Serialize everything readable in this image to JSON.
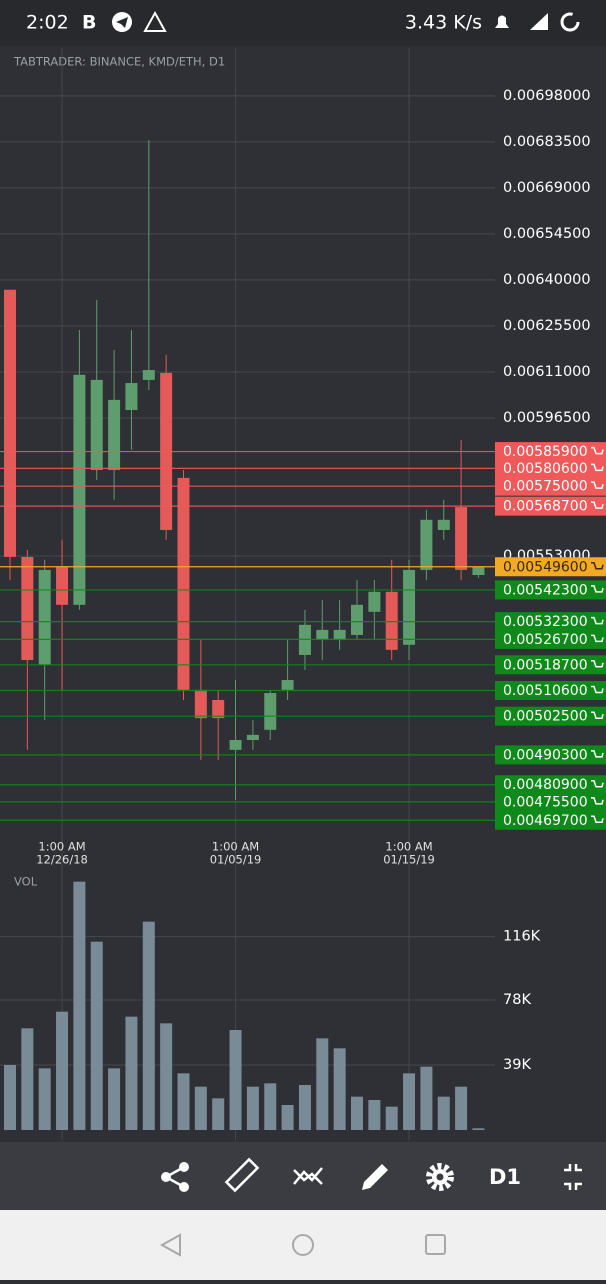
{
  "status_bar": {
    "time": "2:02",
    "app_badge": "B",
    "speed": "3.43 K/s"
  },
  "chart_title": "TABTRADER: BINANCE, KMD/ETH, D1",
  "chart_data": [
    {
      "type": "candlestick",
      "x": [
        "12/23/18",
        "12/24/18",
        "12/25/18",
        "12/26/18",
        "12/27/18",
        "12/28/18",
        "12/29/18",
        "12/30/18",
        "12/31/18",
        "01/01/19",
        "01/02/19",
        "01/03/19",
        "01/04/19",
        "01/05/19",
        "01/06/19",
        "01/07/19",
        "01/08/19",
        "01/09/19",
        "01/10/19",
        "01/11/19",
        "01/12/19",
        "01/13/19",
        "01/14/19",
        "01/15/19",
        "01/16/19",
        "01/17/19",
        "01/18/19",
        "01/19/19"
      ],
      "open": [
        0.006369,
        0.005527,
        0.005187,
        0.005495,
        0.005376,
        0.005801,
        0.005801,
        0.00599,
        0.006085,
        0.006107,
        0.005776,
        0.005108,
        0.005076,
        0.004919,
        0.00495,
        0.004982,
        0.005108,
        0.005218,
        0.005265,
        0.005265,
        0.005281,
        0.005354,
        0.005417,
        0.00525,
        0.005486,
        0.005612,
        0.005684,
        0.00547
      ],
      "high": [
        0.006369,
        0.005549,
        0.005518,
        0.005581,
        0.006242,
        0.006337,
        0.006179,
        0.006242,
        0.006841,
        0.006164,
        0.005801,
        0.005265,
        0.005108,
        0.005139,
        0.005013,
        0.005108,
        0.005265,
        0.00536,
        0.005391,
        0.005391,
        0.005454,
        0.005454,
        0.005518,
        0.005518,
        0.005675,
        0.005707,
        0.005896,
        0.005495
      ],
      "low": [
        0.005454,
        0.004919,
        0.005013,
        0.005108,
        0.00536,
        0.00577,
        0.005707,
        0.005864,
        0.006053,
        0.005581,
        0.005076,
        0.004887,
        0.004887,
        0.004761,
        0.004919,
        0.00495,
        0.005076,
        0.005171,
        0.005202,
        0.005234,
        0.005265,
        0.005265,
        0.005202,
        0.005202,
        0.005454,
        0.005581,
        0.005454,
        0.005461
      ],
      "close": [
        0.005527,
        0.005202,
        0.005486,
        0.005376,
        0.006101,
        0.006085,
        0.006022,
        0.006075,
        0.006116,
        0.005612,
        0.005108,
        0.005019,
        0.005019,
        0.00495,
        0.004966,
        0.005098,
        0.005139,
        0.005313,
        0.005297,
        0.005297,
        0.005376,
        0.005417,
        0.005234,
        0.005486,
        0.005644,
        0.005644,
        0.005486,
        0.005495
      ],
      "up_color": "#5e9d6d",
      "down_color": "#e45a58",
      "ylim": [
        0.00466,
        0.007131
      ],
      "yticks": [
        {
          "value": 0.00698,
          "label": "0.00698000"
        },
        {
          "value": 0.006835,
          "label": "0.00683500"
        },
        {
          "value": 0.00669,
          "label": "0.00669000"
        },
        {
          "value": 0.006545,
          "label": "0.00654500"
        },
        {
          "value": 0.0064,
          "label": "0.00640000"
        },
        {
          "value": 0.006255,
          "label": "0.00625500"
        },
        {
          "value": 0.00611,
          "label": "0.00611000"
        },
        {
          "value": 0.005965,
          "label": "0.00596500"
        },
        {
          "value": 0.00553,
          "label": "0.00553000"
        }
      ],
      "xticks": [
        {
          "time": "1:00 AM",
          "date": "12/26/18"
        },
        {
          "time": "1:00 AM",
          "date": "01/05/19"
        },
        {
          "time": "1:00 AM",
          "date": "01/15/19"
        }
      ],
      "grid": true,
      "sell_levels": [
        {
          "value": 0.005859,
          "label": "0.00585900"
        },
        {
          "value": 0.005806,
          "label": "0.00580600"
        },
        {
          "value": 0.00575,
          "label": "0.00575000"
        },
        {
          "value": 0.005687,
          "label": "0.00568700"
        }
      ],
      "last_price": {
        "value": 0.005496,
        "label": "0.00549600"
      },
      "buy_levels": [
        {
          "value": 0.005423,
          "label": "0.00542300"
        },
        {
          "value": 0.005323,
          "label": "0.00532300"
        },
        {
          "value": 0.005267,
          "label": "0.00526700"
        },
        {
          "value": 0.005187,
          "label": "0.00518700"
        },
        {
          "value": 0.005106,
          "label": "0.00510600"
        },
        {
          "value": 0.005025,
          "label": "0.00502500"
        },
        {
          "value": 0.004903,
          "label": "0.00490300"
        },
        {
          "value": 0.004809,
          "label": "0.00480900"
        },
        {
          "value": 0.004755,
          "label": "0.00475500"
        },
        {
          "value": 0.004697,
          "label": "0.00469700"
        }
      ],
      "sell_color": "#f0595a",
      "last_color": "#f2a923",
      "buy_color": "#0f8a1a"
    },
    {
      "type": "bar",
      "title": "VOL",
      "values": [
        39000,
        61000,
        37000,
        71000,
        149000,
        113000,
        37000,
        68000,
        125000,
        64000,
        34000,
        26000,
        19000,
        60000,
        26000,
        28000,
        15000,
        27000,
        55000,
        49000,
        20000,
        18000,
        14000,
        34000,
        38000,
        20000,
        26000,
        1000
      ],
      "color": "#7a8b98",
      "ylim": [
        0,
        156000
      ],
      "yticks": [
        {
          "value": 39000,
          "label": "39K"
        },
        {
          "value": 78000,
          "label": "78K"
        },
        {
          "value": 116000,
          "label": "116K"
        }
      ],
      "grid": true
    }
  ],
  "toolbar": {
    "timeframe": "D1"
  }
}
